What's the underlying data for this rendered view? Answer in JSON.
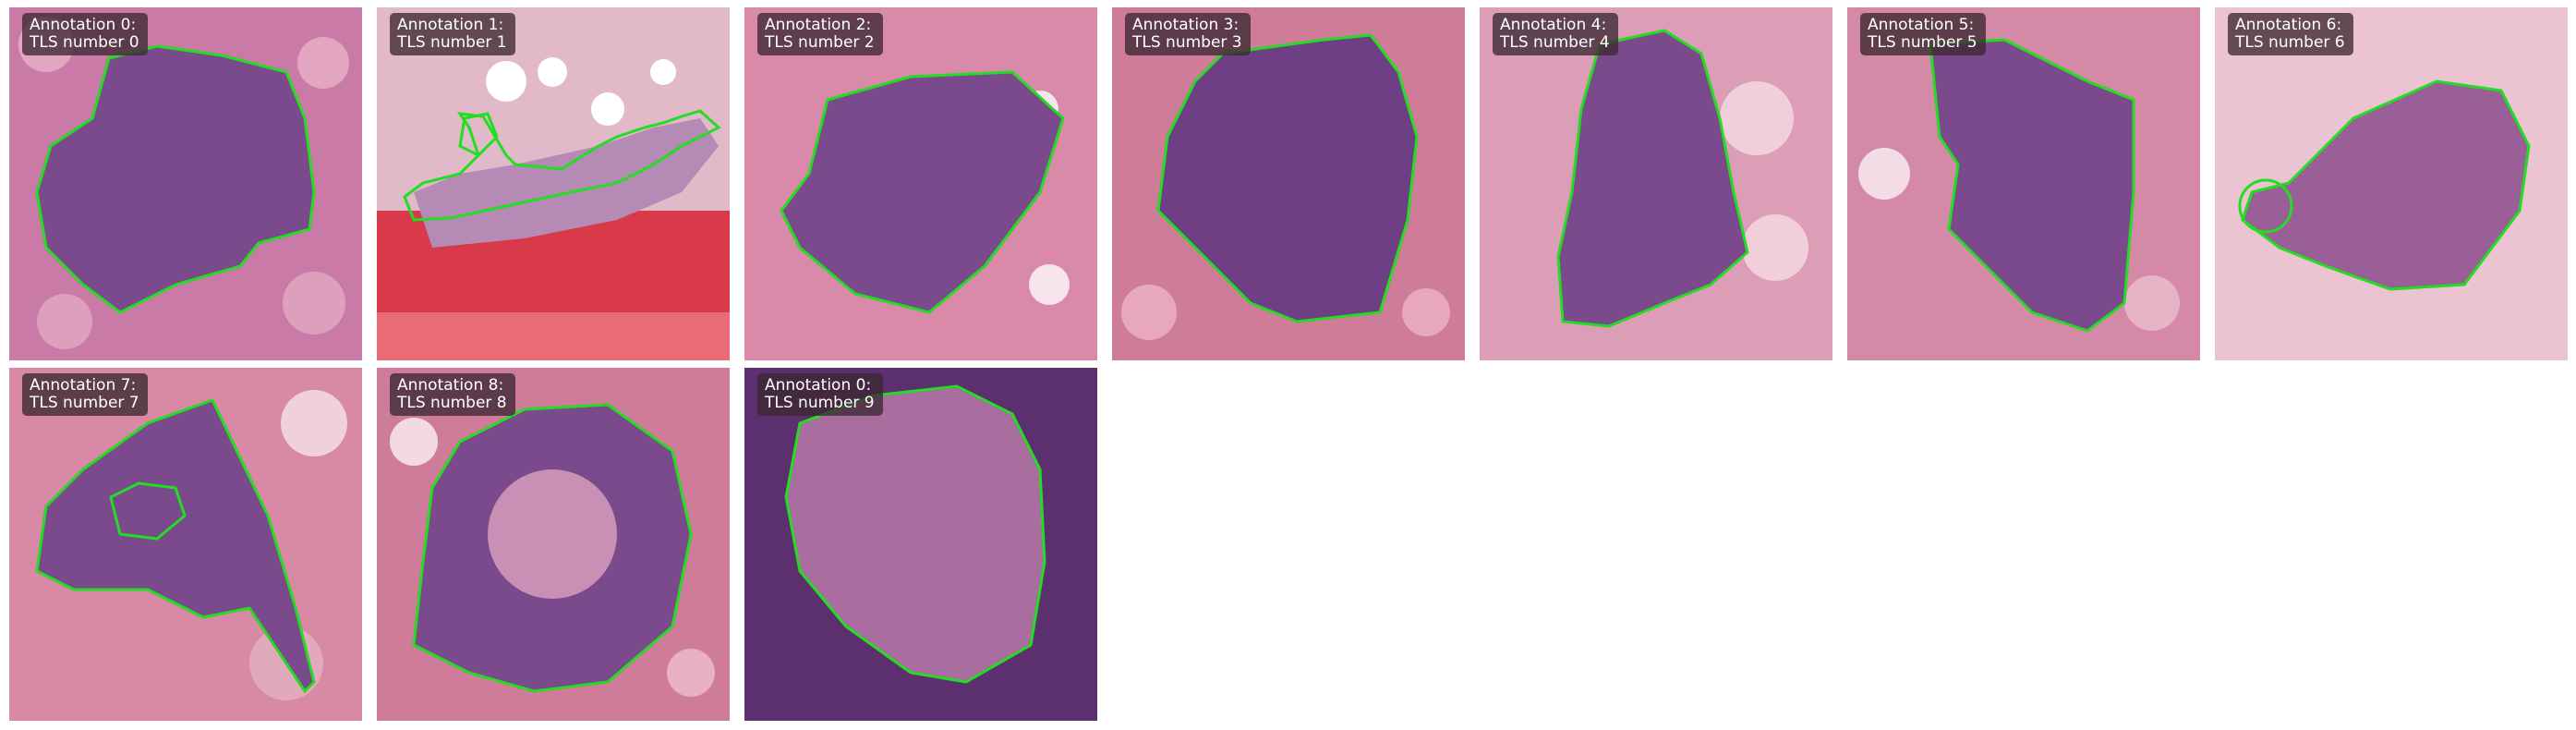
{
  "panels": [
    {
      "title": "Annotation 0:",
      "subtitle": "TLS number 0"
    },
    {
      "title": "Annotation 1:",
      "subtitle": "TLS number 1"
    },
    {
      "title": "Annotation 2:",
      "subtitle": "TLS number 2"
    },
    {
      "title": "Annotation 3:",
      "subtitle": "TLS number 3"
    },
    {
      "title": "Annotation 4:",
      "subtitle": "TLS number 4"
    },
    {
      "title": "Annotation 5:",
      "subtitle": "TLS number 5"
    },
    {
      "title": "Annotation 6:",
      "subtitle": "TLS number 6"
    },
    {
      "title": "Annotation 7:",
      "subtitle": "TLS number 7"
    },
    {
      "title": "Annotation 8:",
      "subtitle": "TLS number 8"
    },
    {
      "title": "Annotation 0:",
      "subtitle": "TLS number 9"
    }
  ],
  "colors": {
    "outline": "#22dd22",
    "tissue_pink": "#d9839f",
    "lymphoid_purple": "#7d4b8e",
    "hemorrhage_red": "#d83a4a",
    "label_bg": "#3c2832"
  }
}
